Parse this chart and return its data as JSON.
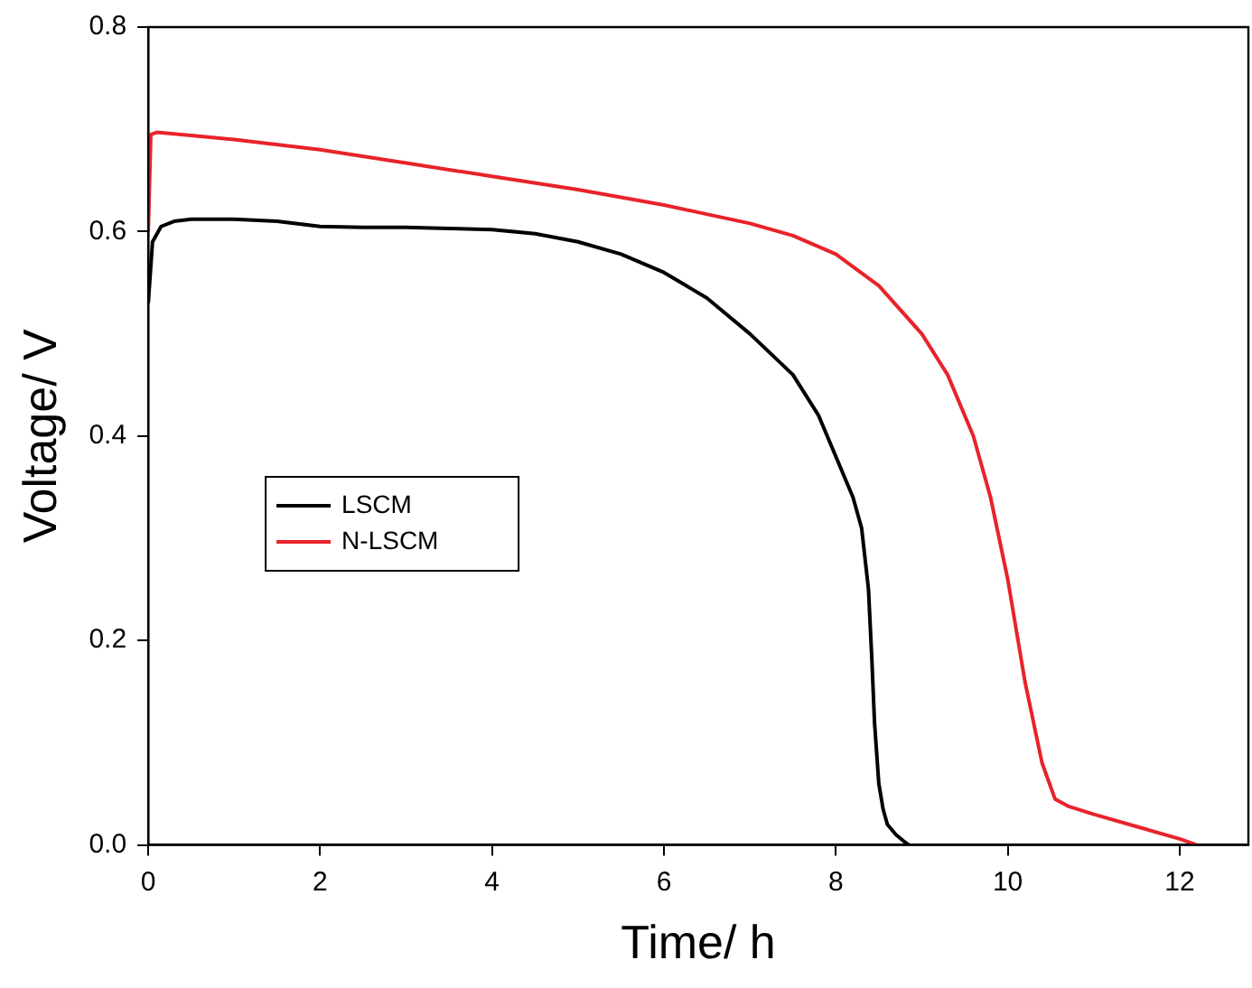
{
  "chart_data": {
    "type": "line",
    "xlabel": "Time/ h",
    "ylabel": "Voltage/ V",
    "xlim": [
      0,
      12.8
    ],
    "xticks": [
      0,
      2,
      4,
      6,
      8,
      10,
      12
    ],
    "ylim": [
      0,
      0.8
    ],
    "yticks": [
      {
        "value": 0,
        "label": "0.0"
      },
      0.2,
      0.4,
      0.6,
      0.8
    ],
    "grid": false,
    "legend": "left",
    "marker": "none",
    "line_style": "solid",
    "series": [
      {
        "name": "LSCM",
        "color": "#000000",
        "x": [
          0,
          0.05,
          0.15,
          0.3,
          0.5,
          1,
          1.5,
          2,
          2.5,
          3,
          3.5,
          4,
          4.5,
          5,
          5.5,
          6,
          6.5,
          7,
          7.5,
          7.8,
          8,
          8.2,
          8.3,
          8.38,
          8.42,
          8.45,
          8.5,
          8.55,
          8.6,
          8.7,
          8.8,
          8.85
        ],
        "values": [
          0.53,
          0.59,
          0.605,
          0.61,
          0.612,
          0.612,
          0.61,
          0.605,
          0.604,
          0.604,
          0.603,
          0.602,
          0.598,
          0.59,
          0.578,
          0.56,
          0.535,
          0.5,
          0.46,
          0.42,
          0.38,
          0.34,
          0.31,
          0.25,
          0.18,
          0.12,
          0.06,
          0.035,
          0.02,
          0.01,
          0.003,
          0
        ]
      },
      {
        "name": "N-LSCM",
        "color": "#e8232a",
        "x": [
          0,
          0.03,
          0.1,
          0.5,
          1,
          2,
          3,
          4,
          5,
          6,
          7,
          7.5,
          8,
          8.5,
          9,
          9.3,
          9.6,
          9.8,
          10,
          10.2,
          10.4,
          10.55,
          10.7,
          11,
          11.5,
          12,
          12.2
        ],
        "values": [
          0.6,
          0.695,
          0.697,
          0.694,
          0.69,
          0.68,
          0.667,
          0.654,
          0.641,
          0.626,
          0.608,
          0.596,
          0.578,
          0.547,
          0.5,
          0.46,
          0.4,
          0.34,
          0.26,
          0.16,
          0.08,
          0.045,
          0.038,
          0.03,
          0.018,
          0.006,
          0
        ]
      }
    ]
  }
}
